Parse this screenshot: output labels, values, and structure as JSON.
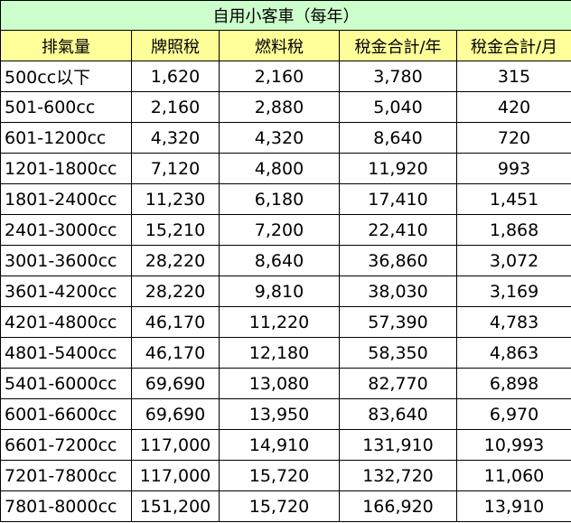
{
  "title": "自用小客車（每年）",
  "headers": [
    "排氣量",
    "牌照稅",
    "燃料稅",
    "稅金合計/年",
    "稅金合計/月"
  ],
  "rows": [
    [
      "500cc以下",
      "1,620",
      "2,160",
      "3,780",
      "315"
    ],
    [
      "501-600cc",
      "2,160",
      "2,880",
      "5,040",
      "420"
    ],
    [
      "601-1200cc",
      "4,320",
      "4,320",
      "8,640",
      "720"
    ],
    [
      "1201-1800cc",
      "7,120",
      "4,800",
      "11,920",
      "993"
    ],
    [
      "1801-2400cc",
      "11,230",
      "6,180",
      "17,410",
      "1,451"
    ],
    [
      "2401-3000cc",
      "15,210",
      "7,200",
      "22,410",
      "1,868"
    ],
    [
      "3001-3600cc",
      "28,220",
      "8,640",
      "36,860",
      "3,072"
    ],
    [
      "3601-4200cc",
      "28,220",
      "9,810",
      "38,030",
      "3,169"
    ],
    [
      "4201-4800cc",
      "46,170",
      "11,220",
      "57,390",
      "4,783"
    ],
    [
      "4801-5400cc",
      "46,170",
      "12,180",
      "58,350",
      "4,863"
    ],
    [
      "5401-6000cc",
      "69,690",
      "13,080",
      "82,770",
      "6,898"
    ],
    [
      "6001-6600cc",
      "69,690",
      "13,950",
      "83,640",
      "6,970"
    ],
    [
      "6601-7200cc",
      "117,000",
      "14,910",
      "131,910",
      "10,993"
    ],
    [
      "7201-7800cc",
      "117,000",
      "15,720",
      "132,720",
      "11,060"
    ],
    [
      "7801-8000cc",
      "151,200",
      "15,720",
      "166,920",
      "13,910"
    ]
  ],
  "colors": {
    "title_background": "#ccffcc",
    "header_background": "#ffff99",
    "cell_background": "#ffffff",
    "border": "#000000"
  }
}
